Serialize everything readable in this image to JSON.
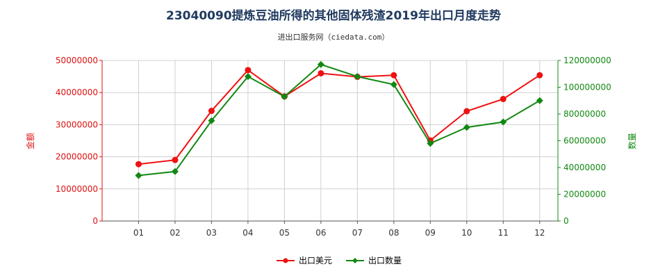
{
  "chart_data": {
    "type": "line",
    "title": "23040090提炼豆油所得的其他固体残渣2019年出口月度走势",
    "subtitle": "进出口服务网（ciedata.com）",
    "categories": [
      "01",
      "02",
      "03",
      "04",
      "05",
      "06",
      "07",
      "08",
      "09",
      "10",
      "11",
      "12"
    ],
    "left_axis": {
      "label": "金额",
      "ylim": [
        0,
        50000000
      ],
      "ticks": [
        0,
        10000000,
        20000000,
        30000000,
        40000000,
        50000000
      ],
      "color": "#dd1111"
    },
    "right_axis": {
      "label": "数量",
      "ylim": [
        0,
        120000000
      ],
      "ticks": [
        0,
        20000000,
        40000000,
        60000000,
        80000000,
        100000000,
        120000000
      ],
      "color": "#118811"
    },
    "series": [
      {
        "name": "出口美元",
        "axis": "left",
        "color": "#ee1111",
        "values": [
          17700000,
          19000000,
          34300000,
          47000000,
          38800000,
          46000000,
          44900000,
          45400000,
          25100000,
          34200000,
          38000000,
          45400000
        ]
      },
      {
        "name": "出口数量",
        "axis": "right",
        "color": "#118811",
        "values": [
          34000000,
          37000000,
          75000000,
          108000000,
          93000000,
          117000000,
          108000000,
          102000000,
          58000000,
          70000000,
          74000000,
          90000000
        ]
      }
    ],
    "grid": true,
    "legend_position": "bottom"
  }
}
